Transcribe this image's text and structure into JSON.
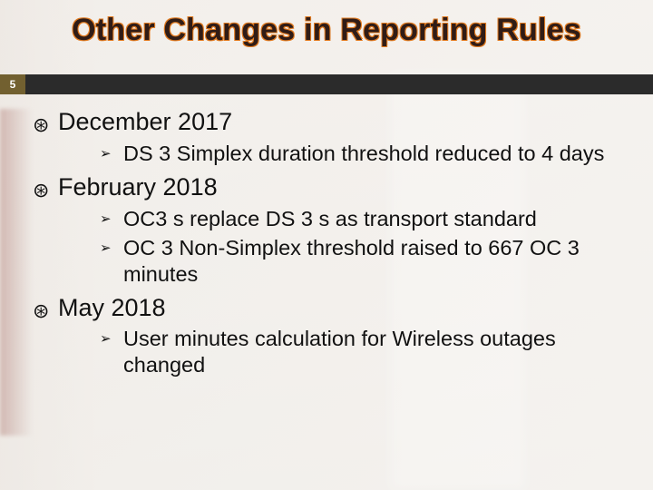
{
  "colors": {
    "title_fill": "#301c16",
    "title_outline": "#e07a20",
    "pagebar_bg": "#2b2b2b",
    "pagebar_num_bg": "#726030",
    "pagebar_num_fg": "#ffffff",
    "body_text": "#111111",
    "slide_bg": "#f5f3f0"
  },
  "typography": {
    "title_fontsize": 34,
    "title_weight": 700,
    "level1_fontsize": 27,
    "level2_fontsize": 23.5,
    "font_family": "Arial"
  },
  "bullets": {
    "level1_glyph": "⊛",
    "level2_glyph": "➢"
  },
  "title": "Other Changes in Reporting Rules",
  "page_number": "5",
  "sections": [
    {
      "heading": "December 2017",
      "items": [
        "DS 3 Simplex duration threshold reduced to 4 days"
      ]
    },
    {
      "heading": "February 2018",
      "items": [
        "OC3 s replace DS 3 s as transport standard",
        "OC 3 Non-Simplex threshold raised to 667 OC 3 minutes"
      ]
    },
    {
      "heading": "May 2018",
      "items": [
        "User minutes calculation for Wireless outages changed"
      ]
    }
  ]
}
